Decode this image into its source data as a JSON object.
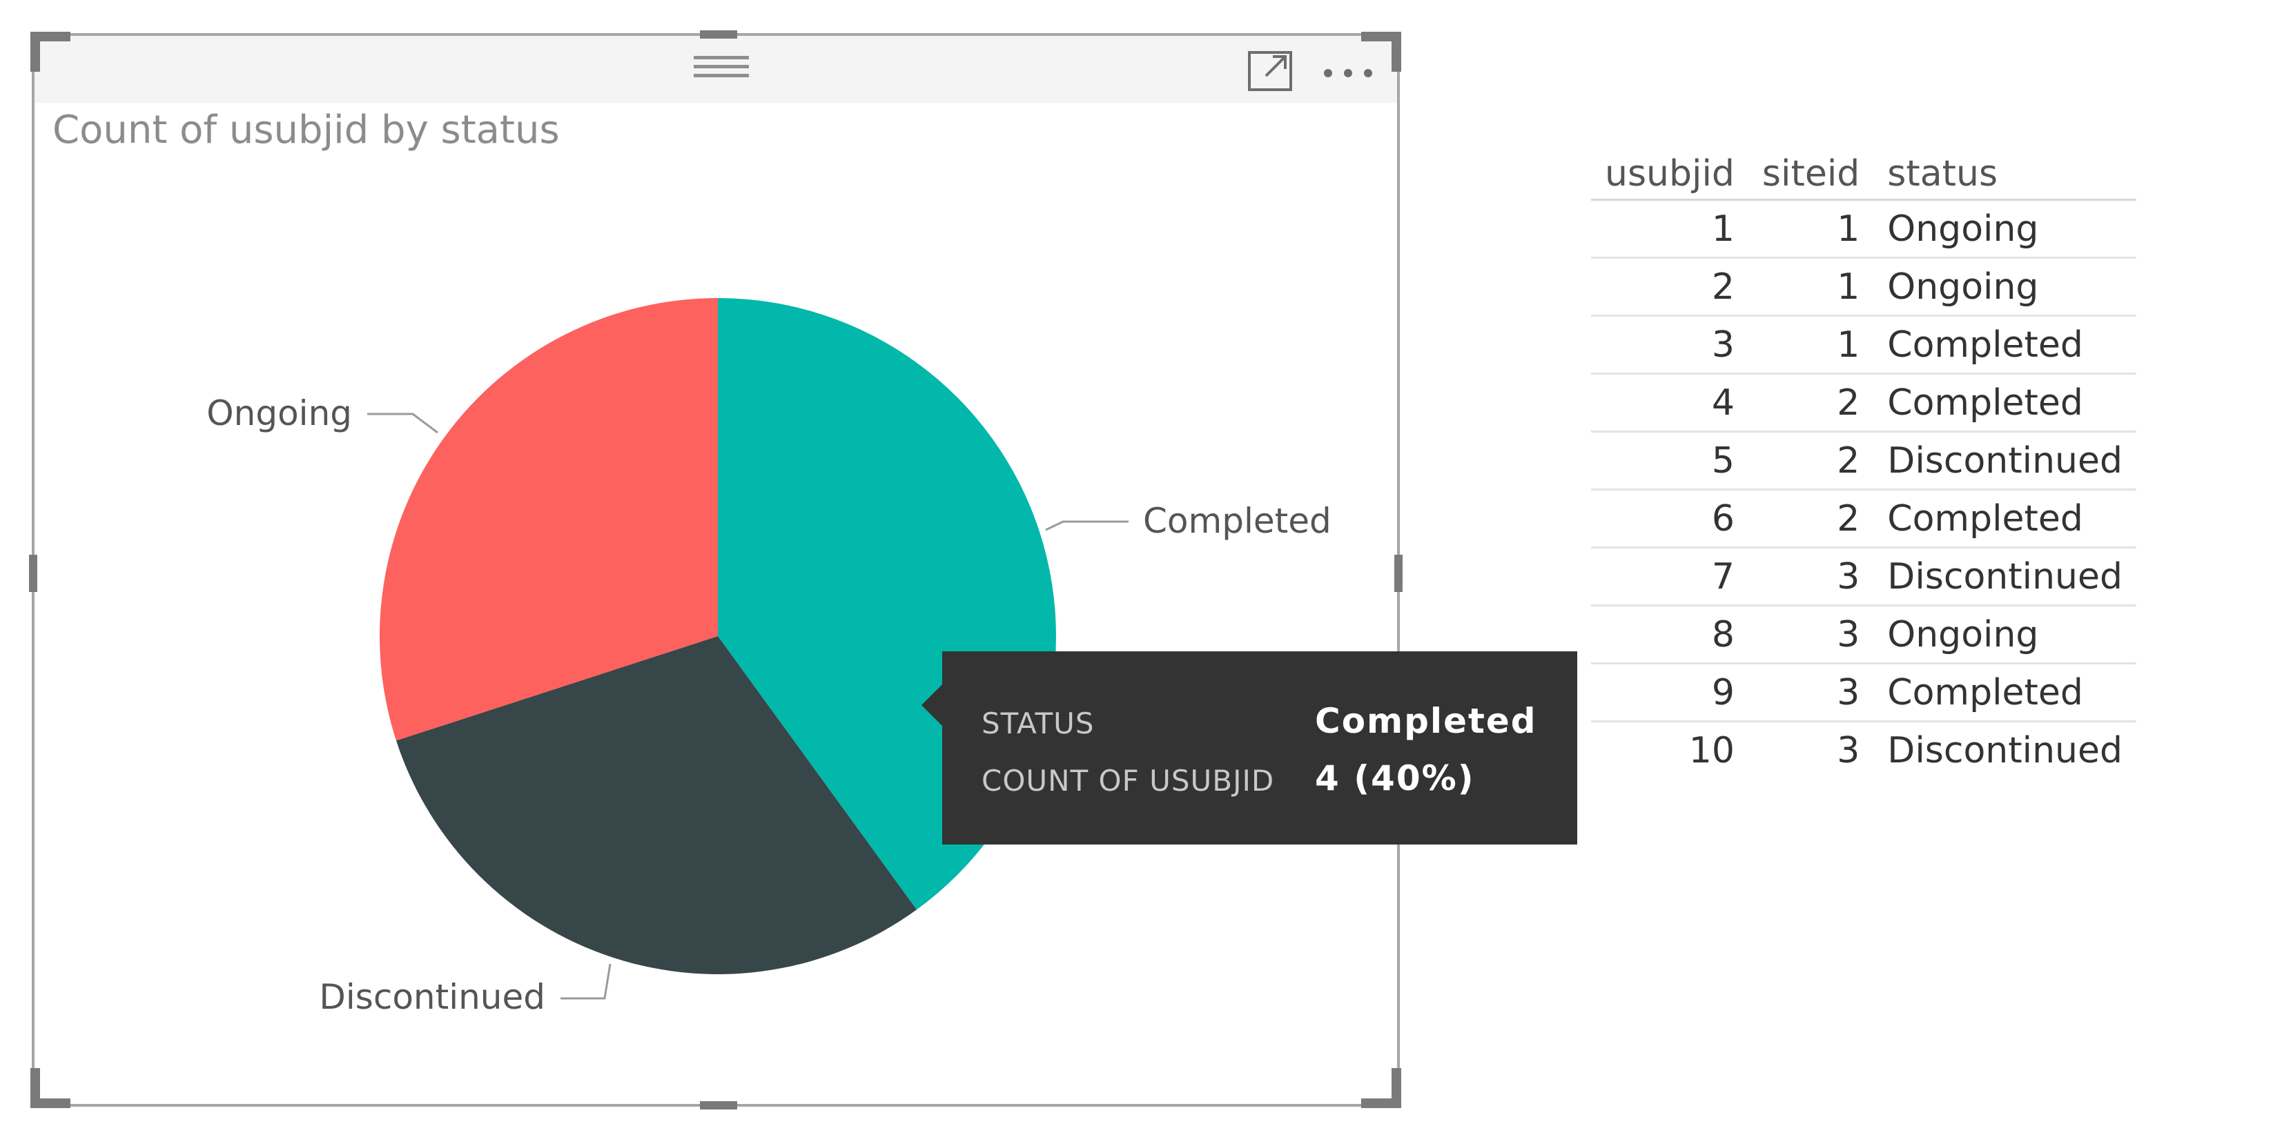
{
  "visual": {
    "title": "Count of usubjid by status",
    "header_icons": [
      "drag-handle-icon",
      "focus-mode-icon",
      "more-options-icon"
    ]
  },
  "chart_data": {
    "type": "pie",
    "title": "Count of usubjid by status",
    "slices": [
      {
        "label": "Completed",
        "value": 4,
        "color": "#01B8AA"
      },
      {
        "label": "Discontinued",
        "value": 3,
        "color": "#374649"
      },
      {
        "label": "Ongoing",
        "value": 3,
        "color": "#FD625E"
      }
    ]
  },
  "tooltip": {
    "rows": [
      {
        "key": "STATUS",
        "value": "Completed"
      },
      {
        "key": "COUNT OF USUBJID",
        "value": "4 (40%)"
      }
    ]
  },
  "table": {
    "columns": [
      "usubjid",
      "siteid",
      "status"
    ],
    "rows": [
      [
        "1",
        "1",
        "Ongoing"
      ],
      [
        "2",
        "1",
        "Ongoing"
      ],
      [
        "3",
        "1",
        "Completed"
      ],
      [
        "4",
        "2",
        "Completed"
      ],
      [
        "5",
        "2",
        "Discontinued"
      ],
      [
        "6",
        "2",
        "Completed"
      ],
      [
        "7",
        "3",
        "Discontinued"
      ],
      [
        "8",
        "3",
        "Ongoing"
      ],
      [
        "9",
        "3",
        "Completed"
      ],
      [
        "10",
        "3",
        "Discontinued"
      ]
    ]
  }
}
